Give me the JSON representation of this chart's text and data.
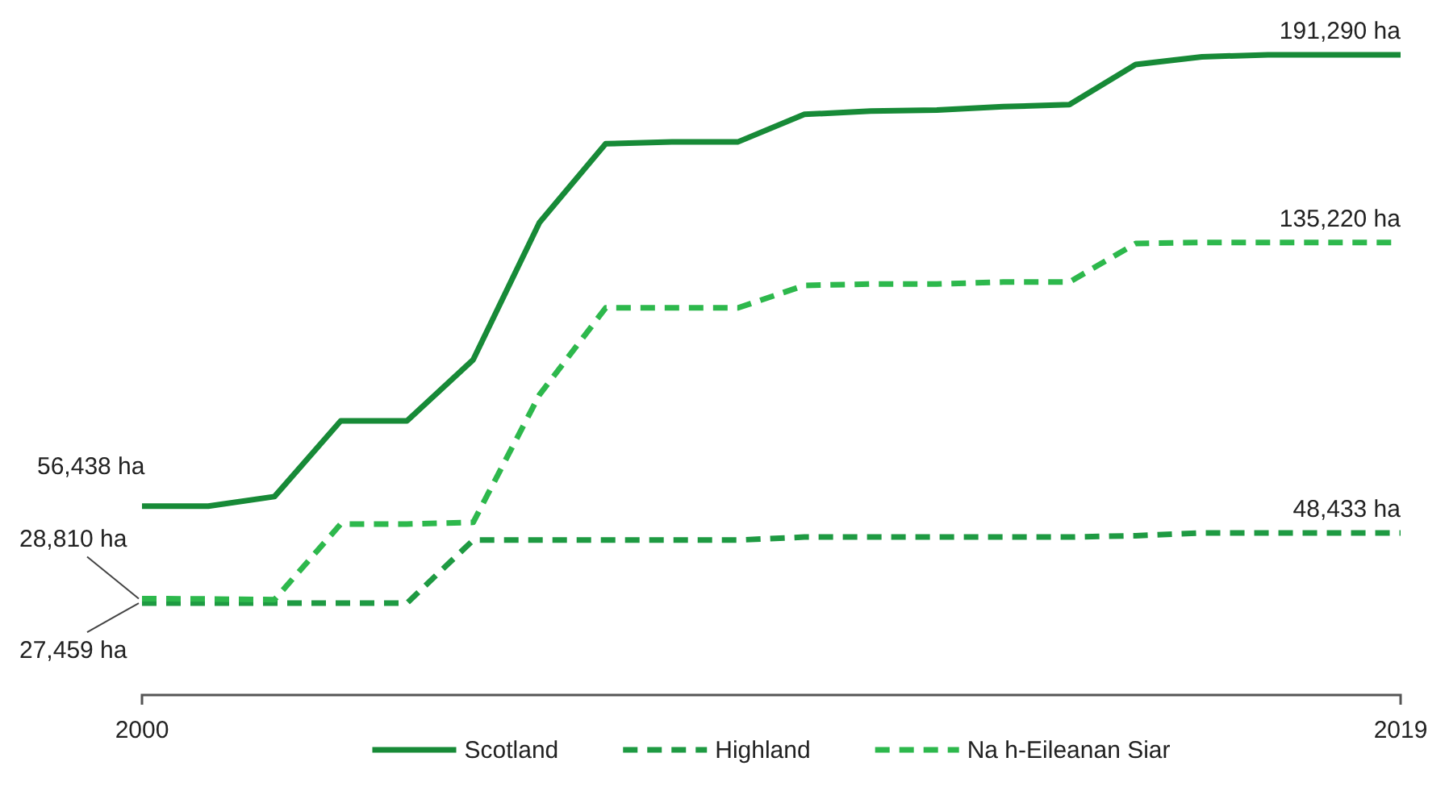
{
  "chart_data": {
    "type": "line",
    "x": [
      2000,
      2001,
      2002,
      2003,
      2004,
      2005,
      2006,
      2007,
      2008,
      2009,
      2010,
      2011,
      2012,
      2013,
      2014,
      2015,
      2016,
      2017,
      2018,
      2019
    ],
    "xlim": [
      2000,
      2019
    ],
    "xticks": [
      2000,
      2019
    ],
    "tick_labels": "x",
    "legend": "bottom",
    "series": [
      {
        "name": "Scotland",
        "color": "#178a37",
        "line_style": "solid",
        "values": [
          56438,
          56438,
          59300,
          81900,
          81900,
          100200,
          141200,
          164700,
          165300,
          165300,
          173500,
          174500,
          174800,
          175800,
          176400,
          188400,
          190700,
          191290,
          191290,
          191290
        ],
        "value_labels": [
          "56,438 ha",
          null,
          null,
          null,
          null,
          null,
          null,
          null,
          null,
          null,
          null,
          null,
          null,
          null,
          null,
          null,
          null,
          null,
          null,
          "191,290 ha"
        ]
      },
      {
        "name": "Highland",
        "color": "#1e9a42",
        "line_style": "dashed",
        "values": [
          27459,
          27459,
          27459,
          27459,
          27459,
          46300,
          46300,
          46300,
          46300,
          46300,
          47200,
          47200,
          47200,
          47200,
          47200,
          47600,
          48433,
          48433,
          48433,
          48433
        ],
        "value_labels": [
          "27,459 ha",
          null,
          null,
          null,
          null,
          null,
          null,
          null,
          null,
          null,
          null,
          null,
          null,
          null,
          null,
          null,
          null,
          null,
          null,
          "48,433 ha"
        ]
      },
      {
        "name": "Na h-Eileanan Siar",
        "color": "#2db84c",
        "line_style": "dashed",
        "values": [
          28810,
          28700,
          28500,
          51100,
          51100,
          51600,
          89700,
          115700,
          115700,
          115700,
          122400,
          122800,
          122800,
          123400,
          123400,
          134900,
          135220,
          135220,
          135220,
          135220
        ],
        "value_labels": [
          "28,810 ha",
          null,
          null,
          null,
          null,
          null,
          null,
          null,
          null,
          null,
          null,
          null,
          null,
          null,
          null,
          null,
          null,
          null,
          null,
          "135,220 ha"
        ]
      }
    ]
  }
}
